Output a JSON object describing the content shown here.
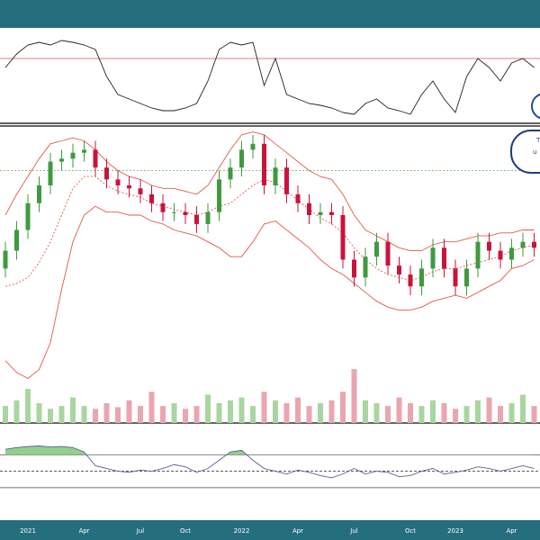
{
  "chart_data": {
    "type": "candlestick",
    "categories": [
      null,
      null,
      "2021",
      null,
      null,
      null,
      null,
      "Apr",
      null,
      null,
      null,
      null,
      "Jul",
      null,
      null,
      null,
      "Oct",
      null,
      null,
      null,
      null,
      "2022",
      null,
      null,
      null,
      null,
      "Apr",
      null,
      null,
      null,
      null,
      "Jul",
      null,
      null,
      null,
      null,
      "Oct",
      null,
      null,
      null,
      "2023",
      null,
      null,
      null,
      null,
      "Apr",
      null,
      null
    ],
    "open": [
      52,
      58,
      65,
      74,
      80,
      88,
      89,
      91,
      92,
      86,
      82,
      80,
      79,
      77,
      74,
      71,
      71,
      70,
      67,
      71,
      82,
      86,
      92,
      94,
      80,
      86,
      77,
      74,
      70,
      71,
      70,
      55,
      49,
      56,
      61,
      53,
      50,
      46,
      52,
      59,
      52,
      46,
      52,
      61,
      58,
      55,
      59,
      61
    ],
    "high": [
      61,
      68,
      77,
      83,
      91,
      92,
      94,
      95,
      95,
      89,
      85,
      83,
      82,
      80,
      77,
      74,
      74,
      73,
      74,
      85,
      89,
      95,
      97,
      97,
      89,
      89,
      80,
      77,
      74,
      74,
      73,
      58,
      59,
      64,
      64,
      56,
      53,
      55,
      62,
      62,
      55,
      55,
      64,
      64,
      61,
      62,
      64,
      64
    ],
    "low": [
      49,
      55,
      62,
      71,
      77,
      85,
      86,
      88,
      83,
      79,
      77,
      76,
      74,
      71,
      68,
      68,
      67,
      64,
      64,
      68,
      79,
      83,
      89,
      77,
      77,
      74,
      71,
      67,
      67,
      67,
      52,
      46,
      46,
      53,
      50,
      47,
      43,
      43,
      49,
      49,
      43,
      43,
      49,
      55,
      52,
      52,
      56,
      56
    ],
    "close": [
      58,
      65,
      74,
      80,
      88,
      89,
      91,
      92,
      86,
      82,
      80,
      79,
      77,
      74,
      71,
      71,
      70,
      67,
      71,
      82,
      86,
      92,
      94,
      80,
      86,
      77,
      74,
      70,
      71,
      70,
      55,
      49,
      56,
      61,
      53,
      50,
      46,
      52,
      59,
      52,
      46,
      52,
      61,
      58,
      55,
      59,
      61,
      59
    ],
    "volume": [
      30,
      40,
      60,
      35,
      25,
      30,
      45,
      30,
      25,
      35,
      28,
      40,
      30,
      55,
      30,
      35,
      25,
      30,
      50,
      35,
      40,
      45,
      30,
      55,
      40,
      35,
      45,
      30,
      35,
      40,
      55,
      95,
      40,
      35,
      30,
      45,
      35,
      30,
      40,
      35,
      25,
      30,
      40,
      45,
      30,
      35,
      50,
      30
    ],
    "bands": {
      "upper": [
        70,
        77,
        83,
        89,
        94,
        95,
        96,
        95,
        92,
        88,
        85,
        83,
        82,
        80,
        79,
        79,
        78,
        77,
        80,
        86,
        92,
        97,
        98,
        97,
        94,
        91,
        88,
        85,
        83,
        82,
        77,
        70,
        65,
        63,
        61,
        59,
        58,
        58,
        60,
        61,
        61,
        62,
        63,
        63,
        64,
        64,
        65,
        65
      ],
      "middle": [
        46,
        47,
        49,
        54,
        61,
        70,
        79,
        83,
        83,
        80,
        78,
        77,
        76,
        74,
        73,
        72,
        71,
        70,
        71,
        73,
        74,
        77,
        80,
        82,
        81,
        78,
        75,
        72,
        69,
        67,
        64,
        59,
        55,
        52,
        50,
        49,
        48,
        49,
        51,
        52,
        52,
        53,
        54,
        55,
        56,
        58,
        59,
        60
      ],
      "lower": [
        21,
        17,
        15,
        18,
        27,
        45,
        61,
        70,
        73,
        71,
        71,
        70,
        70,
        68,
        67,
        65,
        64,
        63,
        61,
        59,
        56,
        56,
        61,
        67,
        68,
        65,
        62,
        59,
        55,
        52,
        50,
        47,
        44,
        41,
        39,
        38,
        38,
        39,
        41,
        42,
        43,
        42,
        44,
        46,
        48,
        52,
        53,
        55
      ]
    },
    "ylim": [
      0,
      100
    ],
    "volume_ylim": [
      0,
      100
    ],
    "reference_line": 85,
    "up_color": "#3f9a3f",
    "down_color": "#c8143c",
    "band_color": "#e05a4a",
    "rsi": {
      "values": [
        60,
        75,
        85,
        88,
        85,
        90,
        88,
        85,
        80,
        50,
        30,
        25,
        20,
        15,
        12,
        12,
        15,
        20,
        45,
        80,
        88,
        85,
        88,
        40,
        70,
        30,
        25,
        20,
        18,
        15,
        10,
        8,
        20,
        25,
        15,
        12,
        8,
        30,
        45,
        25,
        10,
        50,
        70,
        60,
        45,
        65,
        70,
        60
      ],
      "ylim": [
        0,
        100
      ],
      "level": 70
    },
    "oscillator": {
      "values": [
        90,
        93,
        95,
        96,
        94,
        95,
        93,
        85,
        60,
        55,
        50,
        48,
        52,
        50,
        55,
        62,
        58,
        48,
        55,
        70,
        85,
        88,
        70,
        55,
        50,
        45,
        52,
        48,
        42,
        38,
        45,
        55,
        45,
        50,
        48,
        40,
        42,
        50,
        55,
        45,
        48,
        52,
        58,
        55,
        50,
        55,
        60,
        55
      ],
      "ylim": [
        10,
        105
      ],
      "levels": [
        80,
        50,
        20
      ]
    },
    "callout": [
      "T",
      "u"
    ]
  }
}
